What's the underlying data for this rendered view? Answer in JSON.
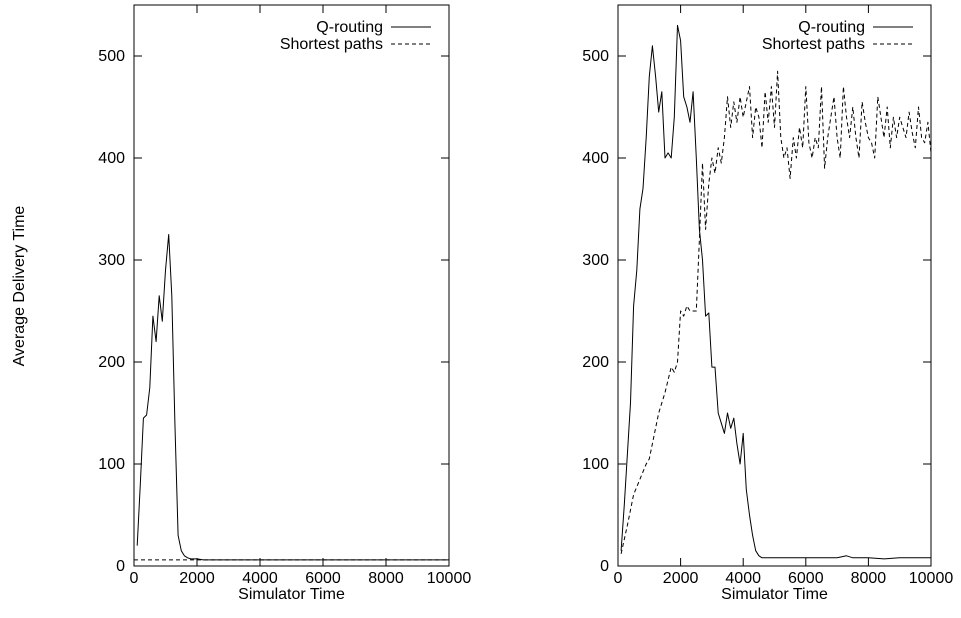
{
  "figure": {
    "ylabel": "Average Delivery Time"
  },
  "chart_data": [
    {
      "type": "line",
      "xlabel": "Simulator Time",
      "ylabel": "Average Delivery Time",
      "xlim": [
        0,
        10000
      ],
      "ylim": [
        0,
        550
      ],
      "xticks": [
        0,
        2000,
        4000,
        6000,
        8000,
        10000
      ],
      "yticks": [
        0,
        100,
        200,
        300,
        400,
        500
      ],
      "grid": false,
      "legend_position": "top-right",
      "series": [
        {
          "name": "Q-routing",
          "style": "solid",
          "x": [
            100,
            200,
            300,
            400,
            500,
            600,
            700,
            800,
            900,
            1000,
            1100,
            1200,
            1300,
            1400,
            1500,
            1600,
            1700,
            1800,
            1900,
            2000,
            2200,
            2500,
            3000,
            4000,
            5000,
            6000,
            7000,
            8000,
            9000,
            10000
          ],
          "y": [
            20,
            80,
            145,
            148,
            175,
            245,
            220,
            265,
            240,
            290,
            325,
            265,
            140,
            30,
            15,
            10,
            8,
            7,
            7,
            7,
            6,
            6,
            6,
            6,
            6,
            6,
            6,
            6,
            6,
            6
          ]
        },
        {
          "name": "Shortest paths",
          "style": "dashed",
          "x": [
            0,
            2000,
            4000,
            6000,
            8000,
            10000
          ],
          "y": [
            6,
            6,
            6,
            6,
            6,
            6
          ]
        }
      ]
    },
    {
      "type": "line",
      "xlabel": "Simulator Time",
      "ylabel": "",
      "xlim": [
        0,
        10000
      ],
      "ylim": [
        0,
        550
      ],
      "xticks": [
        0,
        2000,
        4000,
        6000,
        8000,
        10000
      ],
      "yticks": [
        0,
        100,
        200,
        300,
        400,
        500
      ],
      "grid": false,
      "legend_position": "top-right",
      "series": [
        {
          "name": "Q-routing",
          "style": "solid",
          "x": [
            100,
            200,
            300,
            400,
            500,
            600,
            700,
            800,
            900,
            1000,
            1100,
            1200,
            1300,
            1400,
            1500,
            1600,
            1700,
            1800,
            1900,
            2000,
            2100,
            2200,
            2300,
            2400,
            2500,
            2600,
            2700,
            2800,
            2900,
            3000,
            3100,
            3200,
            3300,
            3400,
            3500,
            3600,
            3700,
            3800,
            3900,
            4000,
            4100,
            4200,
            4300,
            4400,
            4500,
            4600,
            4700,
            4800,
            5000,
            5500,
            6000,
            6500,
            7000,
            7300,
            7500,
            8000,
            8500,
            9000,
            9500,
            10000
          ],
          "y": [
            15,
            60,
            110,
            160,
            255,
            290,
            350,
            370,
            420,
            480,
            510,
            480,
            445,
            465,
            400,
            405,
            400,
            440,
            530,
            515,
            460,
            450,
            435,
            465,
            400,
            330,
            300,
            245,
            248,
            195,
            195,
            150,
            140,
            130,
            150,
            135,
            145,
            120,
            100,
            130,
            75,
            50,
            30,
            15,
            10,
            8,
            8,
            8,
            8,
            8,
            8,
            8,
            8,
            10,
            8,
            8,
            7,
            8,
            8,
            8
          ]
        },
        {
          "name": "Shortest paths",
          "style": "dashed",
          "x": [
            100,
            300,
            500,
            700,
            900,
            1000,
            1100,
            1300,
            1500,
            1700,
            1800,
            1900,
            2000,
            2100,
            2200,
            2300,
            2400,
            2500,
            2600,
            2700,
            2800,
            2900,
            3000,
            3100,
            3200,
            3300,
            3400,
            3500,
            3600,
            3700,
            3800,
            3900,
            4000,
            4100,
            4200,
            4300,
            4400,
            4500,
            4600,
            4700,
            4800,
            4900,
            5000,
            5100,
            5200,
            5300,
            5400,
            5500,
            5600,
            5700,
            5800,
            5900,
            6000,
            6100,
            6200,
            6300,
            6400,
            6500,
            6600,
            6700,
            6800,
            6900,
            7000,
            7100,
            7200,
            7300,
            7400,
            7500,
            7600,
            7700,
            7800,
            7900,
            8000,
            8100,
            8200,
            8300,
            8400,
            8500,
            8600,
            8700,
            8800,
            8900,
            9000,
            9100,
            9200,
            9300,
            9400,
            9500,
            9600,
            9700,
            9800,
            9900,
            10000
          ],
          "y": [
            12,
            40,
            70,
            85,
            100,
            105,
            120,
            150,
            170,
            195,
            190,
            200,
            250,
            245,
            255,
            250,
            250,
            250,
            320,
            395,
            330,
            375,
            400,
            385,
            410,
            395,
            420,
            460,
            430,
            455,
            435,
            460,
            440,
            455,
            470,
            420,
            450,
            440,
            410,
            465,
            435,
            470,
            430,
            485,
            420,
            400,
            410,
            380,
            420,
            400,
            430,
            410,
            470,
            415,
            400,
            420,
            410,
            470,
            390,
            420,
            440,
            460,
            420,
            400,
            470,
            440,
            420,
            450,
            420,
            400,
            455,
            435,
            420,
            415,
            400,
            460,
            440,
            420,
            450,
            410,
            440,
            420,
            440,
            430,
            420,
            445,
            425,
            410,
            450,
            420,
            415,
            435,
            405
          ]
        }
      ]
    }
  ]
}
